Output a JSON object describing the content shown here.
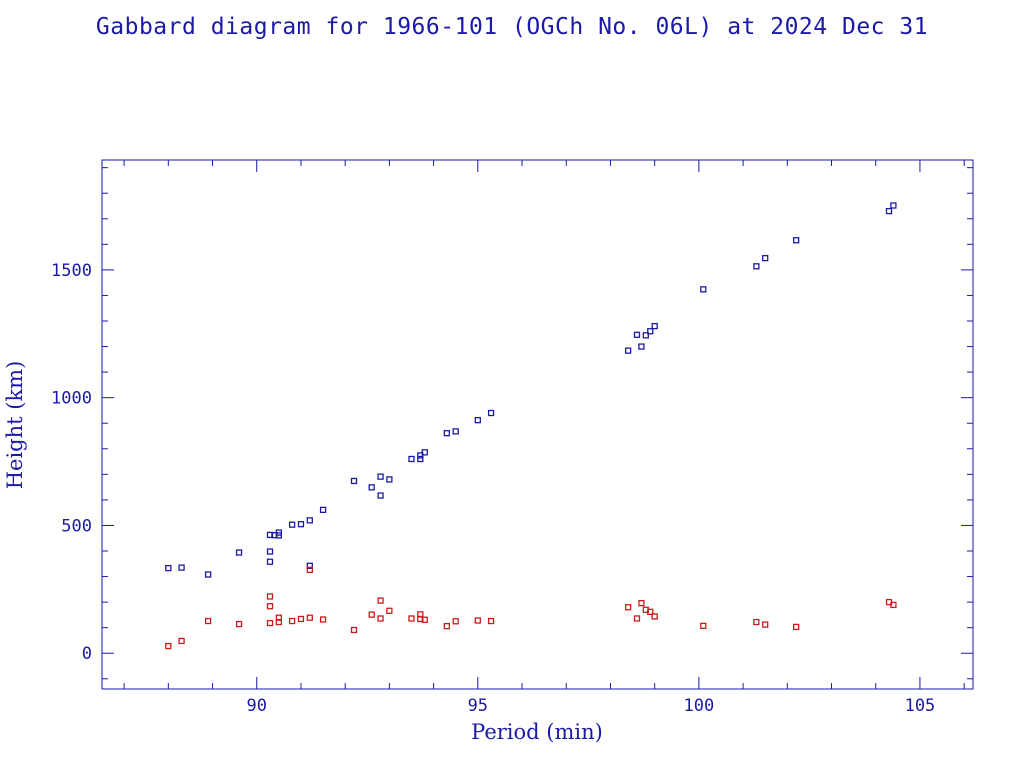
{
  "chart_data": {
    "type": "scatter",
    "title": "Gabbard diagram for 1966-101 (OGCh No. 06L) at 2024 Dec 31",
    "xlabel": "Period (min)",
    "ylabel": "Height (km)",
    "xlim": [
      86.5,
      106.2
    ],
    "ylim": [
      -140,
      1930
    ],
    "xticks": [
      90,
      95,
      100,
      105
    ],
    "yticks": [
      0,
      500,
      1000,
      1500
    ],
    "grid": false,
    "legend": "none",
    "colors": {
      "axis": "#1a1aa6",
      "apogee": "#1a1aa6",
      "perigee": "#cc1a1a"
    },
    "series": [
      {
        "role": "apogee",
        "x": [
          88.0,
          88.3,
          88.9,
          89.6,
          90.3,
          90.4,
          90.5,
          90.5,
          90.3,
          90.3,
          90.8,
          91.0,
          91.2,
          91.2,
          91.5,
          92.2,
          92.6,
          92.8,
          92.8,
          93.0,
          93.5,
          93.7,
          93.7,
          93.8,
          94.3,
          94.5,
          95.0,
          95.3,
          98.4,
          98.6,
          98.7,
          98.8,
          98.9,
          99.0,
          100.1,
          101.3,
          101.5,
          102.2,
          104.3,
          104.4
        ],
        "y": [
          333,
          335,
          308,
          394,
          463,
          462,
          461,
          472,
          398,
          358,
          503,
          505,
          520,
          342,
          561,
          674,
          649,
          617,
          691,
          680,
          760,
          774,
          760,
          786,
          861,
          868,
          912,
          940,
          1184,
          1246,
          1200,
          1244,
          1260,
          1280,
          1424,
          1514,
          1546,
          1616,
          1730,
          1752
        ]
      },
      {
        "role": "perigee",
        "x": [
          88.0,
          88.3,
          88.9,
          89.6,
          90.3,
          90.3,
          90.3,
          90.5,
          90.5,
          90.8,
          91.0,
          91.2,
          91.2,
          91.5,
          92.2,
          92.6,
          92.8,
          92.8,
          93.0,
          93.5,
          93.7,
          93.7,
          93.8,
          94.3,
          94.5,
          95.0,
          95.3,
          98.4,
          98.6,
          98.7,
          98.8,
          98.9,
          99.0,
          100.1,
          101.3,
          101.5,
          102.2,
          104.3,
          104.4
        ],
        "y": [
          28,
          48,
          126,
          114,
          222,
          184,
          118,
          122,
          139,
          126,
          134,
          139,
          326,
          132,
          91,
          151,
          206,
          136,
          166,
          136,
          152,
          134,
          131,
          106,
          125,
          128,
          126,
          180,
          136,
          196,
          170,
          162,
          144,
          107,
          122,
          112,
          103,
          200,
          189
        ]
      }
    ]
  }
}
